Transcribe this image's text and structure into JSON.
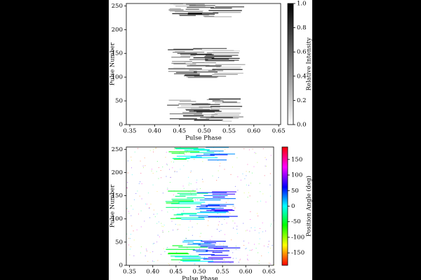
{
  "chart_data": [
    {
      "type": "heatmap",
      "xlabel": "Pulse Phase",
      "ylabel": "Pulse Number",
      "xlim": [
        0.343,
        0.654
      ],
      "ylim": [
        0,
        255
      ],
      "xticks": [
        0.35,
        {
          "value": 0.4,
          "label": "0.40"
        },
        0.45,
        {
          "value": 0.5,
          "label": "0.50"
        },
        0.55,
        {
          "value": 0.6,
          "label": "0.60"
        },
        0.65
      ],
      "yticks": [
        0,
        50,
        100,
        150,
        200,
        250
      ],
      "colormap": "gray_r",
      "colorbar": {
        "label": "Relative Intensity",
        "lim": [
          0,
          1
        ],
        "ticks": [
          {
            "value": 0,
            "label": "0.0"
          },
          0.2,
          0.4,
          0.6,
          0.8,
          {
            "value": 1,
            "label": "1.0"
          }
        ]
      }
    },
    {
      "type": "heatmap",
      "xlabel": "Pulse Phase",
      "ylabel": "Pulse Number",
      "xlim": [
        0.343,
        0.66
      ],
      "ylim": [
        0,
        255
      ],
      "xticks": [
        0.35,
        {
          "value": 0.4,
          "label": "0.40"
        },
        0.45,
        {
          "value": 0.5,
          "label": "0.50"
        },
        0.55,
        {
          "value": 0.6,
          "label": "0.60"
        },
        0.65
      ],
      "yticks": [
        0,
        50,
        100,
        150,
        200,
        250
      ],
      "colormap": "hsv",
      "colorbar": {
        "label": "Position Angle (deg)",
        "lim": [
          -190,
          190
        ],
        "ticks": [
          -150,
          -100,
          -50,
          0,
          50,
          100,
          150
        ]
      }
    }
  ]
}
